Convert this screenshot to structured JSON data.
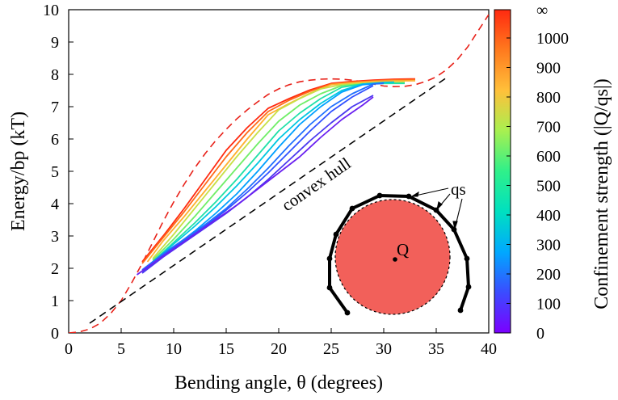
{
  "chart_data": {
    "type": "line",
    "xlabel": "Bending angle, θ (degrees)",
    "ylabel": "Energy/bp (kT)",
    "xlim": [
      0,
      40
    ],
    "ylim": [
      0,
      10
    ],
    "xticks": [
      "0",
      "5",
      "10",
      "15",
      "20",
      "25",
      "30",
      "35",
      "40"
    ],
    "yticks": [
      "0",
      "1",
      "2",
      "3",
      "4",
      "5",
      "6",
      "7",
      "8",
      "9",
      "10"
    ],
    "colorbar": {
      "label": "Confinement strength (|Q/qs|)",
      "min": 0,
      "max": 1000,
      "ticks": [
        "0",
        "100",
        "200",
        "300",
        "400",
        "500",
        "600",
        "700",
        "800",
        "900",
        "1000",
        "∞"
      ],
      "stops": [
        "#7b00ff",
        "#3b4cff",
        "#00a8ff",
        "#00e0c0",
        "#2ff08a",
        "#a8f050",
        "#ffc03a",
        "#ff7a1e",
        "#ff2a10"
      ]
    },
    "annotations": {
      "convex_hull_label": "convex hull",
      "charge_label": "Q",
      "qs_label": "qs"
    },
    "inset": {
      "circle_color": "#f2605a",
      "chain_color": "#000000"
    },
    "series": [
      {
        "name": "unconfined energy",
        "color": "#e8221a",
        "dash": "dashed",
        "x": [
          0,
          1,
          2,
          3,
          4,
          5,
          6,
          7,
          8,
          9,
          10,
          11,
          12,
          13,
          14,
          15,
          16,
          17,
          18,
          19,
          20,
          21,
          22,
          23,
          24,
          25,
          26,
          27,
          28,
          29,
          30,
          31,
          32,
          33,
          34,
          35,
          36,
          37,
          38,
          39,
          40
        ],
        "y": [
          0,
          0.03,
          0.12,
          0.3,
          0.6,
          1.0,
          1.55,
          2.15,
          2.8,
          3.45,
          4.05,
          4.6,
          5.1,
          5.55,
          5.95,
          6.3,
          6.62,
          6.9,
          7.15,
          7.38,
          7.55,
          7.68,
          7.77,
          7.82,
          7.85,
          7.86,
          7.85,
          7.82,
          7.77,
          7.7,
          7.64,
          7.62,
          7.63,
          7.68,
          7.78,
          7.92,
          8.15,
          8.45,
          8.85,
          9.35,
          9.85
        ]
      },
      {
        "name": "convex hull",
        "color": "#000000",
        "dash": "dashed",
        "x": [
          2,
          36
        ],
        "y": [
          0.3,
          7.9
        ]
      },
      {
        "name": "Q/qs=1000",
        "color": "#ff2a10",
        "x": [
          7,
          9,
          11,
          13,
          15,
          17,
          19,
          21,
          23,
          25,
          27,
          29,
          31,
          33
        ],
        "y": [
          2.2,
          3.0,
          3.85,
          4.75,
          5.65,
          6.35,
          6.95,
          7.25,
          7.52,
          7.72,
          7.78,
          7.82,
          7.85,
          7.86
        ]
      },
      {
        "name": "Q/qs=900",
        "color": "#ff6a18",
        "x": [
          7,
          9,
          11,
          13,
          15,
          17,
          19,
          21,
          23,
          25,
          27,
          29,
          31,
          33
        ],
        "y": [
          2.15,
          2.95,
          3.75,
          4.6,
          5.45,
          6.2,
          6.85,
          7.2,
          7.48,
          7.7,
          7.76,
          7.8,
          7.83,
          7.84
        ]
      },
      {
        "name": "Q/qs=800",
        "color": "#ffb030",
        "x": [
          7.5,
          9,
          11,
          13,
          15,
          17,
          19,
          21,
          23,
          25,
          27,
          29,
          31,
          33
        ],
        "y": [
          2.2,
          2.85,
          3.6,
          4.4,
          5.2,
          6.0,
          6.75,
          7.1,
          7.42,
          7.68,
          7.74,
          7.78,
          7.8,
          7.8
        ]
      },
      {
        "name": "Q/qs=700",
        "color": "#c8e048",
        "x": [
          8,
          10,
          12,
          14,
          16,
          18,
          20,
          22,
          24,
          26,
          28,
          30,
          32
        ],
        "y": [
          2.3,
          3.05,
          3.85,
          4.65,
          5.45,
          6.2,
          6.9,
          7.25,
          7.55,
          7.68,
          7.72,
          7.75,
          7.76
        ]
      },
      {
        "name": "Q/qs=600",
        "color": "#70ee68",
        "x": [
          8,
          10,
          12,
          14,
          16,
          18,
          20,
          22,
          24,
          26,
          28,
          30,
          32
        ],
        "y": [
          2.25,
          2.9,
          3.6,
          4.35,
          5.1,
          5.85,
          6.55,
          7.05,
          7.4,
          7.65,
          7.7,
          7.72,
          7.73
        ]
      },
      {
        "name": "Q/qs=500",
        "color": "#20e0a8",
        "x": [
          8,
          10,
          12,
          14,
          16,
          18,
          20,
          22,
          24,
          26,
          28,
          30,
          32
        ],
        "y": [
          2.2,
          2.8,
          3.4,
          4.05,
          4.75,
          5.5,
          6.25,
          6.8,
          7.25,
          7.6,
          7.7,
          7.72,
          7.72
        ]
      },
      {
        "name": "Q/qs=400",
        "color": "#00c8e0",
        "x": [
          7.5,
          10,
          12,
          14,
          16,
          18,
          20,
          22,
          24,
          26,
          28,
          30,
          31
        ],
        "y": [
          2.05,
          2.75,
          3.3,
          3.9,
          4.55,
          5.25,
          6.0,
          6.6,
          7.1,
          7.5,
          7.7,
          7.75,
          7.76
        ]
      },
      {
        "name": "Q/qs=300",
        "color": "#00a0ff",
        "x": [
          7.5,
          10,
          12,
          14,
          16,
          18,
          20,
          22,
          24,
          26,
          28,
          30
        ],
        "y": [
          2.0,
          2.65,
          3.15,
          3.7,
          4.3,
          5.0,
          5.75,
          6.45,
          7.0,
          7.45,
          7.68,
          7.74
        ]
      },
      {
        "name": "Q/qs=200",
        "color": "#2070ff",
        "x": [
          7,
          9,
          11,
          13,
          15,
          17,
          19,
          21,
          23,
          25,
          27,
          29,
          30
        ],
        "y": [
          1.95,
          2.45,
          2.9,
          3.35,
          3.85,
          4.45,
          5.1,
          5.8,
          6.45,
          7.0,
          7.4,
          7.7,
          7.72
        ]
      },
      {
        "name": "Q/qs=150",
        "color": "#3050ff",
        "x": [
          7,
          9,
          11,
          13,
          15,
          17,
          19,
          21,
          23,
          25,
          27,
          29
        ],
        "y": [
          1.9,
          2.4,
          2.85,
          3.3,
          3.8,
          4.35,
          4.95,
          5.6,
          6.25,
          6.85,
          7.3,
          7.65
        ]
      },
      {
        "name": "Q/qs=100",
        "color": "#4a38f0",
        "x": [
          7,
          9,
          11,
          13,
          15,
          17,
          19,
          21,
          23,
          25,
          27,
          29
        ],
        "y": [
          1.85,
          2.35,
          2.8,
          3.25,
          3.7,
          4.2,
          4.75,
          5.35,
          5.95,
          6.5,
          7.0,
          7.35
        ]
      },
      {
        "name": "Q/qs=50",
        "color": "#6a20f0",
        "x": [
          6.5,
          8,
          10,
          12,
          14,
          16,
          18,
          20,
          22,
          24,
          26,
          28,
          29
        ],
        "y": [
          1.8,
          2.15,
          2.6,
          3.05,
          3.5,
          3.95,
          4.45,
          4.95,
          5.45,
          6.05,
          6.6,
          7.05,
          7.3
        ]
      }
    ]
  }
}
